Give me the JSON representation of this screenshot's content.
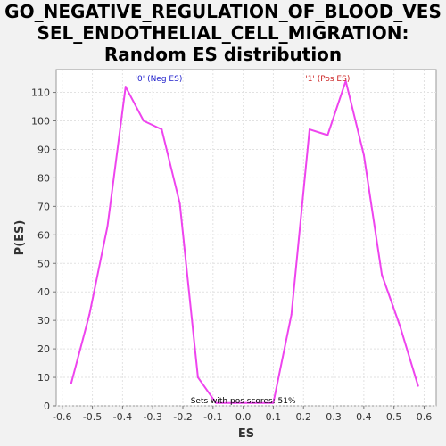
{
  "title_lines": [
    "GO_NEGATIVE_REGULATION_OF_BLOOD_VES",
    "SEL_ENDOTHELIAL_CELL_MIGRATION:",
    "Random ES distribution"
  ],
  "chart_data": {
    "type": "line",
    "xlabel": "ES",
    "ylabel": "P(ES)",
    "xlim": [
      -0.62,
      0.64
    ],
    "ylim": [
      0,
      118
    ],
    "xticks": [
      -0.6,
      -0.5,
      -0.4,
      -0.3,
      -0.2,
      -0.1,
      0.0,
      0.1,
      0.2,
      0.3,
      0.4,
      0.5,
      0.6
    ],
    "xtick_labels": [
      "-0.6",
      "-0.5",
      "-0.4",
      "-0.3",
      "-0.2",
      "-0.1",
      "0.0",
      "0.1",
      "0.2",
      "0.3",
      "0.4",
      "0.5",
      "0.6"
    ],
    "yticks": [
      0,
      10,
      20,
      30,
      40,
      50,
      60,
      70,
      80,
      90,
      100,
      110
    ],
    "ytick_labels": [
      "0",
      "10",
      "20",
      "30",
      "40",
      "50",
      "60",
      "70",
      "80",
      "90",
      "100",
      "110"
    ],
    "grid": true,
    "line_color": "#ee44ee",
    "x": [
      -0.57,
      -0.51,
      -0.45,
      -0.39,
      -0.33,
      -0.27,
      -0.21,
      -0.15,
      -0.09,
      -0.03,
      0.03,
      0.1,
      0.16,
      0.22,
      0.28,
      0.34,
      0.4,
      0.46,
      0.52,
      0.58
    ],
    "y": [
      8,
      32,
      63,
      112,
      100,
      97,
      71,
      10,
      1,
      1,
      1,
      1,
      32,
      97,
      95,
      114,
      88,
      46,
      28,
      7
    ],
    "annotations": [
      {
        "text": "'0' (Neg ES)",
        "x": -0.28,
        "y": 114,
        "color": "#2222cc"
      },
      {
        "text": "'1' (Pos ES)",
        "x": 0.28,
        "y": 114,
        "color": "#cc2222"
      },
      {
        "text": "Sets with pos scores: 51%",
        "x": 0.0,
        "y": 1,
        "color": "#000000"
      }
    ]
  }
}
